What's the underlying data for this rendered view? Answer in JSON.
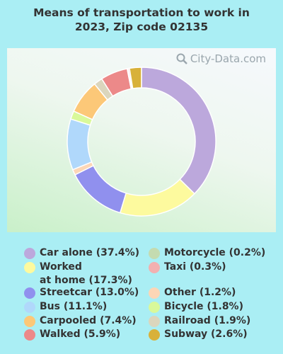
{
  "title_line1": "Means of transportation to work in",
  "title_line2": "2023, Zip code 02135",
  "watermark": "City-Data.com",
  "chart_data": {
    "type": "donut",
    "title": "Means of transportation to work in 2023, Zip code 02135",
    "slices": [
      {
        "label": "Car alone (37.4%)",
        "value": 37.4,
        "color": "#bca8dc"
      },
      {
        "label": "Worked at home (17.3%)",
        "value": 17.3,
        "color": "#fdfa9e"
      },
      {
        "label": "Streetcar (13.0%)",
        "value": 13.0,
        "color": "#9090ee"
      },
      {
        "label": "Other (1.2%)",
        "value": 1.2,
        "color": "#fcd6b6"
      },
      {
        "label": "Bus (11.1%)",
        "value": 11.1,
        "color": "#b0d8fb"
      },
      {
        "label": "Bicycle (1.8%)",
        "value": 1.8,
        "color": "#d9f99a"
      },
      {
        "label": "Carpooled (7.4%)",
        "value": 7.4,
        "color": "#fcc878"
      },
      {
        "label": "Railroad (1.9%)",
        "value": 1.9,
        "color": "#dbd6bd"
      },
      {
        "label": "Walked (5.9%)",
        "value": 5.9,
        "color": "#ec8989"
      },
      {
        "label": "Motorcycle (0.2%)",
        "value": 0.2,
        "color": "#c4dbb0"
      },
      {
        "label": "Taxi (0.3%)",
        "value": 0.3,
        "color": "#f2b0b0"
      },
      {
        "label": "Subway (2.6%)",
        "value": 2.6,
        "color": "#d8b13a"
      }
    ]
  },
  "legend": {
    "left": [
      {
        "label": "Car alone (37.4%)",
        "color": "#bca8dc"
      },
      {
        "label": "Worked\nat home (17.3%)",
        "color": "#fdfa9e"
      },
      {
        "label": "Streetcar (13.0%)",
        "color": "#9090ee"
      },
      {
        "label": "Bus (11.1%)",
        "color": "#b0d8fb"
      },
      {
        "label": "Carpooled (7.4%)",
        "color": "#fcc878"
      },
      {
        "label": "Walked (5.9%)",
        "color": "#ec8989"
      }
    ],
    "right": [
      {
        "label": "Motorcycle (0.2%)",
        "color": "#c4dbb0"
      },
      {
        "label": "Taxi (0.3%)",
        "color": "#f2b0b0"
      },
      {
        "label": "Other (1.2%)",
        "color": "#fcd6b6"
      },
      {
        "label": "Bicycle (1.8%)",
        "color": "#d9f99a"
      },
      {
        "label": "Railroad (1.9%)",
        "color": "#dbd6bd"
      },
      {
        "label": "Subway (2.6%)",
        "color": "#d8b13a"
      }
    ]
  }
}
